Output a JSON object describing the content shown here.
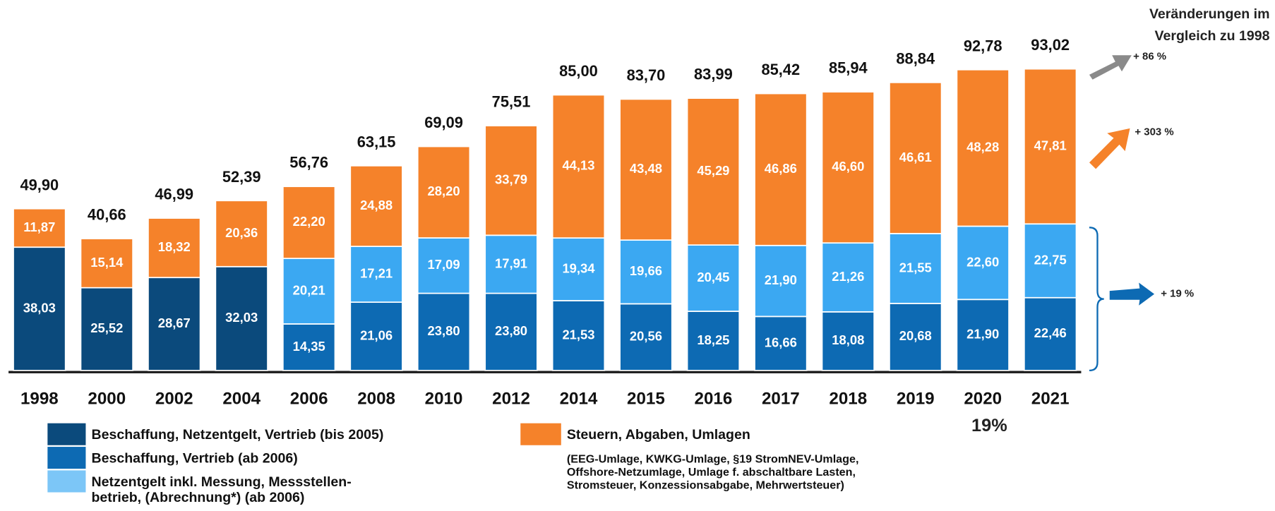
{
  "chart_data": {
    "type": "stacked_bar",
    "categories": [
      "1998",
      "2000",
      "2002",
      "2004",
      "2006",
      "2008",
      "2010",
      "2012",
      "2014",
      "2015",
      "2016",
      "2017",
      "2018",
      "2019",
      "2020",
      "2021"
    ],
    "ylim": [
      0,
      100
    ],
    "series": [
      {
        "name": [
          "Beschaffung, Netzentgelt, Vertrieb (bis 2005)"
        ],
        "color": "#0b4a7c",
        "values": [
          38.03,
          25.52,
          28.67,
          32.03,
          null,
          null,
          null,
          null,
          null,
          null,
          null,
          null,
          null,
          null,
          null,
          null
        ],
        "value_labels": [
          "38,03",
          "25,52",
          "28,67",
          "32,03",
          null,
          null,
          null,
          null,
          null,
          null,
          null,
          null,
          null,
          null,
          null,
          null
        ]
      },
      {
        "name": [
          "Beschaffung, Vertrieb (ab 2006)"
        ],
        "color": "#0d6ab3",
        "values": [
          null,
          null,
          null,
          null,
          14.35,
          21.06,
          23.8,
          23.8,
          21.53,
          20.56,
          18.25,
          16.66,
          18.08,
          20.68,
          21.9,
          22.46
        ],
        "value_labels": [
          null,
          null,
          null,
          null,
          "14,35",
          "21,06",
          "23,80",
          "23,80",
          "21,53",
          "20,56",
          "18,25",
          "16,66",
          "18,08",
          "20,68",
          "21,90",
          "22,46"
        ]
      },
      {
        "name": [
          "Netzentgelt inkl. Messung, Messstellen-",
          "betrieb, (Abrechnung*) (ab 2006)"
        ],
        "color": "#3ba8f2",
        "values": [
          null,
          null,
          null,
          null,
          20.21,
          17.21,
          17.09,
          17.91,
          19.34,
          19.66,
          20.45,
          21.9,
          21.26,
          21.55,
          22.6,
          22.75
        ],
        "value_labels": [
          null,
          null,
          null,
          null,
          "20,21",
          "17,21",
          "17,09",
          "17,91",
          "19,34",
          "19,66",
          "20,45",
          "21,90",
          "21,26",
          "21,55",
          "22,60",
          "22,75"
        ]
      },
      {
        "name": [
          "Steuern, Abgaben, Umlagen"
        ],
        "color": "#f5822a",
        "note": [
          "(EEG-Umlage, KWKG-Umlage, §19 StromNEV-Umlage,",
          "Offshore-Netzumlage,  Umlage f. abschaltbare Lasten,",
          "Stromsteuer, Konzessionsabgabe, Mehrwertsteuer)"
        ],
        "values": [
          11.87,
          15.14,
          18.32,
          20.36,
          22.2,
          24.88,
          28.2,
          33.79,
          44.13,
          43.48,
          45.29,
          46.86,
          46.6,
          46.61,
          48.28,
          47.81
        ],
        "value_labels": [
          "11,87",
          "15,14",
          "18,32",
          "20,36",
          "22,20",
          "24,88",
          "28,20",
          "33,79",
          "44,13",
          "43,48",
          "45,29",
          "46,86",
          "46,60",
          "46,61",
          "48,28",
          "47,81"
        ]
      }
    ],
    "totals": {
      "values": [
        49.9,
        40.66,
        46.99,
        52.39,
        56.76,
        63.15,
        69.09,
        75.51,
        85.0,
        83.7,
        83.99,
        85.42,
        85.94,
        88.84,
        92.78,
        93.02
      ],
      "value_labels": [
        "49,90",
        "40,66",
        "46,99",
        "52,39",
        "56,76",
        "63,15",
        "69,09",
        "75,51",
        "85,00",
        "83,70",
        "83,99",
        "85,42",
        "85,94",
        "88,84",
        "92,78",
        "93,02"
      ]
    },
    "annotations": {
      "change_header": [
        "Veränderungen im",
        "Vergleich zu 1998"
      ],
      "total_change": "+ 86 %",
      "tax_change": "+ 303 %",
      "network_change": "+ 19 %",
      "note_2020": "19%"
    }
  }
}
